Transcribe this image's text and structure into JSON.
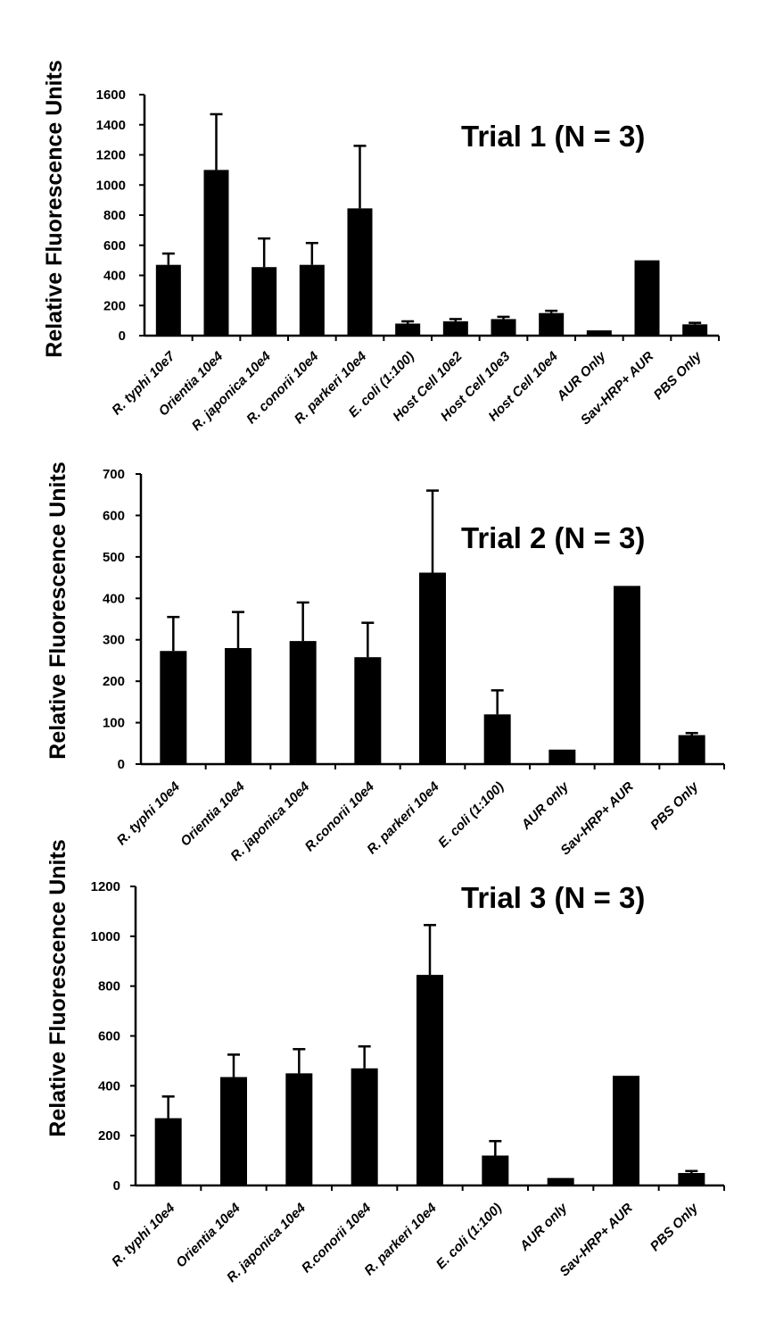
{
  "colors": {
    "bar": "#000000",
    "axis": "#000000",
    "background": "#ffffff"
  },
  "chart_data": [
    {
      "type": "bar",
      "title": "Trial 1 (N = 3)",
      "xlabel": "",
      "ylabel": "Relative Fluorescence Units",
      "ylim": [
        0,
        1600
      ],
      "yticks": [
        0,
        200,
        400,
        600,
        800,
        1000,
        1200,
        1400,
        1600
      ],
      "grid": false,
      "categories": [
        "R. typhi 10e7",
        "Orientia 10e4",
        "R. japonica 10e4",
        "R. conorii 10e4",
        "R. parkeri 10e4",
        "E. coli (1:100)",
        "Host Cell  10e2",
        "Host Cell  10e3",
        "Host Cell 10e4",
        "AUR Only",
        "Sav-HRP+ AUR",
        "PBS Only"
      ],
      "values": [
        470,
        1100,
        455,
        470,
        845,
        80,
        95,
        110,
        150,
        35,
        500,
        75
      ],
      "errors": [
        75,
        370,
        190,
        145,
        415,
        15,
        15,
        15,
        15,
        0,
        0,
        10
      ]
    },
    {
      "type": "bar",
      "title": "Trial 2 (N = 3)",
      "xlabel": "",
      "ylabel": "Relative Fluorescence Units",
      "ylim": [
        0,
        700
      ],
      "yticks": [
        0,
        100,
        200,
        300,
        400,
        500,
        600,
        700
      ],
      "grid": false,
      "categories": [
        "R. typhi 10e4",
        "Orientia 10e4",
        "R. japonica 10e4",
        "R.conorii 10e4",
        "R. parkeri 10e4",
        "E. coli (1:100)",
        "AUR only",
        "Sav-HRP+ AUR",
        "PBS Only"
      ],
      "values": [
        273,
        280,
        297,
        258,
        462,
        120,
        35,
        430,
        70
      ],
      "errors": [
        82,
        87,
        93,
        83,
        198,
        58,
        0,
        0,
        5
      ]
    },
    {
      "type": "bar",
      "title": "Trial 3 (N = 3)",
      "xlabel": "",
      "ylabel": "Relative Fluorescence Units",
      "ylim": [
        0,
        1200
      ],
      "yticks": [
        0,
        200,
        400,
        600,
        800,
        1000,
        1200
      ],
      "grid": false,
      "categories": [
        "R. typhi 10e4",
        "Orientia 10e4",
        "R. japonica 10e4",
        "R.conorii 10e4",
        "R. parkeri 10e4",
        "E. coli (1:100)",
        "AUR only",
        "Sav-HRP+ AUR",
        "PBS Only"
      ],
      "values": [
        270,
        435,
        450,
        470,
        845,
        120,
        30,
        440,
        50
      ],
      "errors": [
        87,
        90,
        97,
        88,
        200,
        58,
        0,
        0,
        8
      ]
    }
  ]
}
